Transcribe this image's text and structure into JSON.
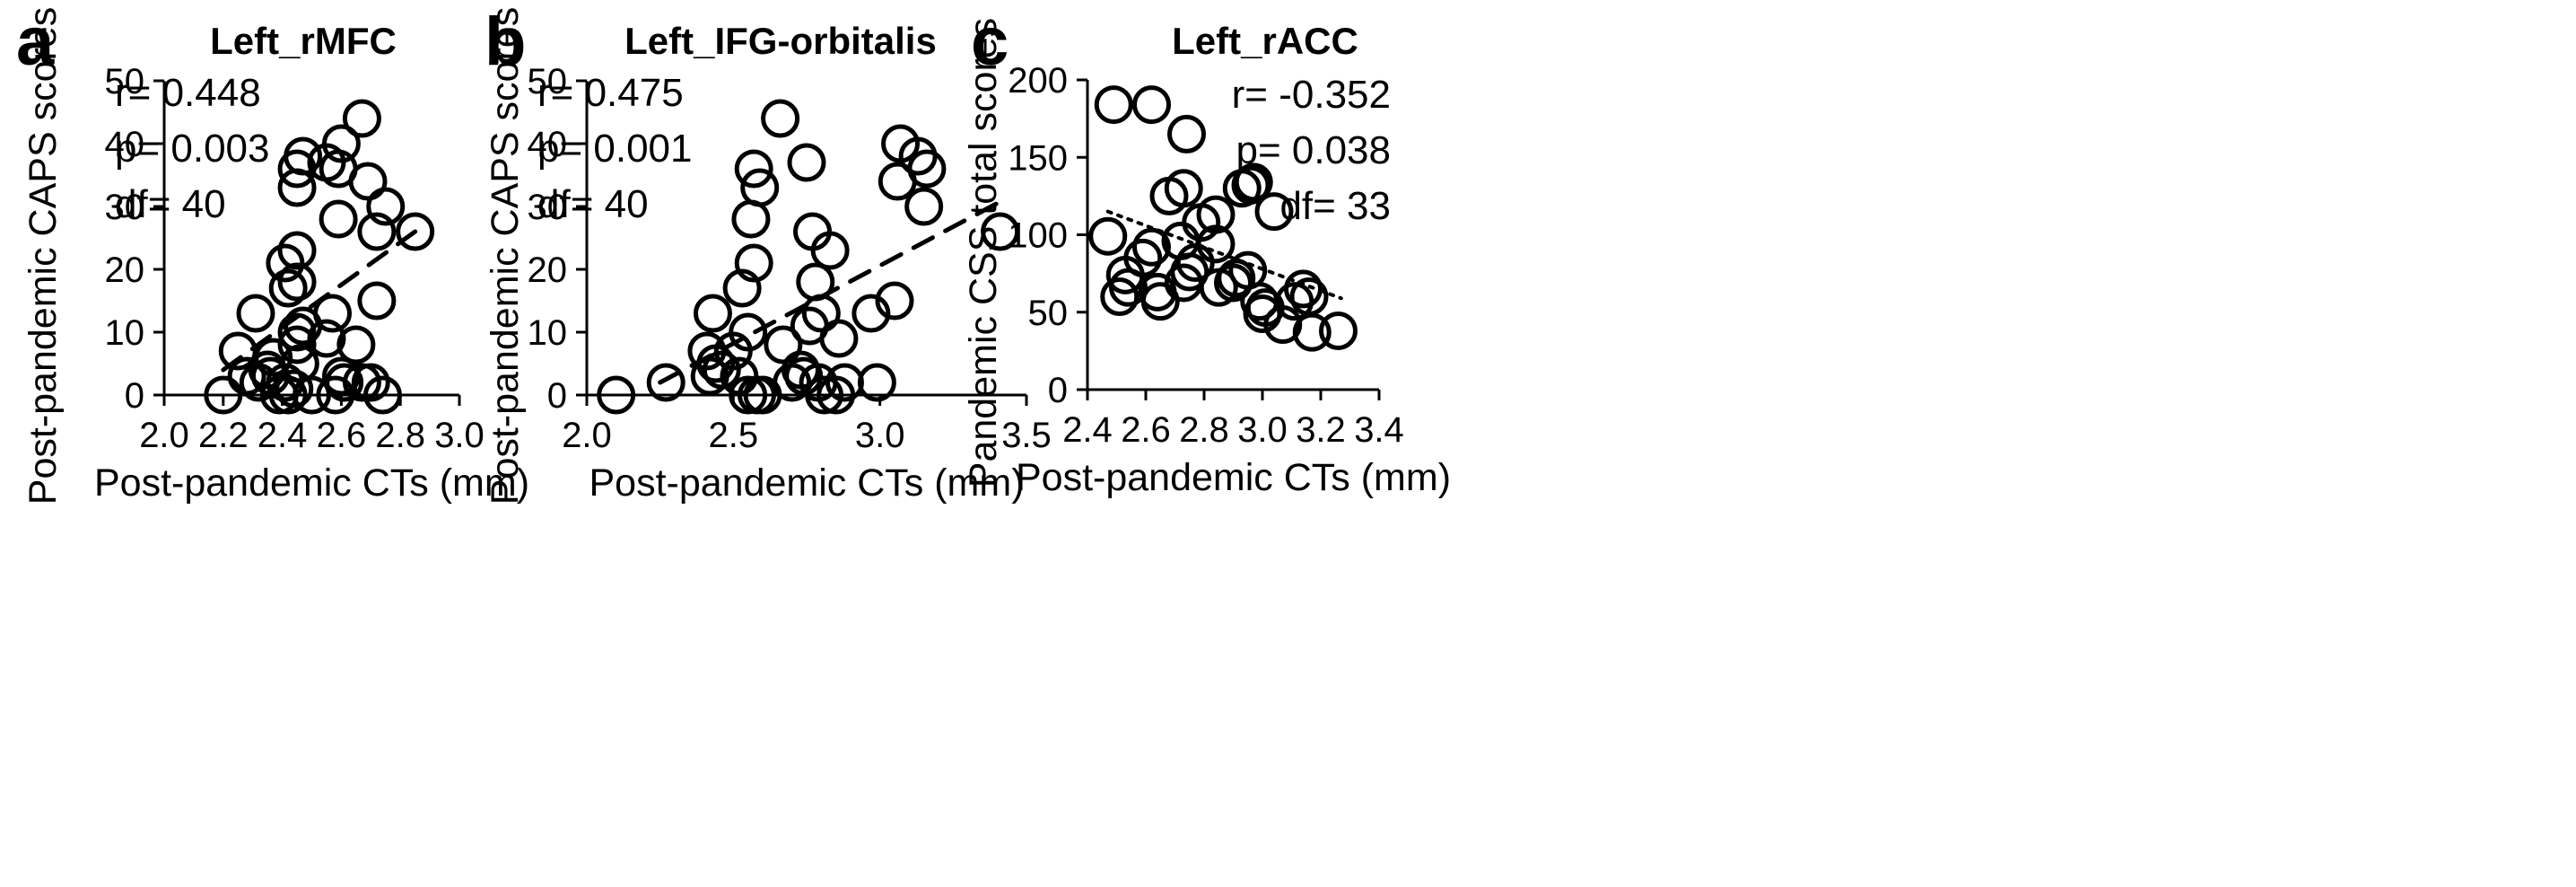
{
  "chart_data": [
    {
      "type": "scatter",
      "panel": "a",
      "title": "Left_rMFC",
      "xlabel": "Post-pandemic CTs (mm)",
      "ylabel": "Post-pandemic CAPS scores",
      "xlim": [
        2.0,
        3.0
      ],
      "ylim": [
        0,
        50
      ],
      "xticks": [
        "2.0",
        "2.2",
        "2.4",
        "2.6",
        "2.8",
        "3.0"
      ],
      "yticks": [
        "0",
        "10",
        "20",
        "30",
        "40",
        "50"
      ],
      "stats": [
        "r= 0.448",
        "p= 0.003",
        "df= 40"
      ],
      "trend": {
        "style": "dashed",
        "x": [
          2.2,
          2.85
        ],
        "y": [
          4,
          26
        ]
      },
      "points": [
        [
          2.2,
          0
        ],
        [
          2.25,
          7
        ],
        [
          2.28,
          3
        ],
        [
          2.31,
          13
        ],
        [
          2.32,
          2
        ],
        [
          2.35,
          4
        ],
        [
          2.36,
          3
        ],
        [
          2.37,
          6
        ],
        [
          2.39,
          0
        ],
        [
          2.41,
          21
        ],
        [
          2.41,
          2
        ],
        [
          2.42,
          0
        ],
        [
          2.42,
          17
        ],
        [
          2.44,
          1
        ],
        [
          2.45,
          23
        ],
        [
          2.45,
          18
        ],
        [
          2.45,
          33
        ],
        [
          2.45,
          36
        ],
        [
          2.45,
          10
        ],
        [
          2.45,
          8
        ],
        [
          2.46,
          5
        ],
        [
          2.47,
          11
        ],
        [
          2.47,
          38
        ],
        [
          2.5,
          0
        ],
        [
          2.55,
          9
        ],
        [
          2.55,
          37
        ],
        [
          2.57,
          13
        ],
        [
          2.58,
          0
        ],
        [
          2.59,
          36
        ],
        [
          2.59,
          28
        ],
        [
          2.6,
          40
        ],
        [
          2.6,
          3
        ],
        [
          2.61,
          2
        ],
        [
          2.65,
          8
        ],
        [
          2.67,
          44
        ],
        [
          2.67,
          2
        ],
        [
          2.69,
          34
        ],
        [
          2.7,
          2
        ],
        [
          2.72,
          15
        ],
        [
          2.72,
          26
        ],
        [
          2.74,
          0
        ],
        [
          2.75,
          30
        ],
        [
          2.85,
          26
        ]
      ]
    },
    {
      "type": "scatter",
      "panel": "b",
      "title": "Left_IFG-orbitalis",
      "xlabel": "Post-pandemic CTs (mm)",
      "ylabel": "Post-pandemic CAPS scores",
      "xlim": [
        2.0,
        3.5
      ],
      "ylim": [
        0,
        50
      ],
      "xticks": [
        "2.0",
        "2.5",
        "3.0",
        "3.5"
      ],
      "yticks": [
        "0",
        "10",
        "20",
        "30",
        "40",
        "50"
      ],
      "stats": [
        "r= 0.475",
        "p= 0.001",
        "df= 40"
      ],
      "trend": {
        "style": "dashed",
        "x": [
          2.25,
          3.4
        ],
        "y": [
          2,
          30.5
        ]
      },
      "points": [
        [
          2.1,
          0
        ],
        [
          2.27,
          2
        ],
        [
          2.41,
          7
        ],
        [
          2.42,
          3
        ],
        [
          2.43,
          13
        ],
        [
          2.44,
          5
        ],
        [
          2.46,
          4
        ],
        [
          2.5,
          7
        ],
        [
          2.52,
          3
        ],
        [
          2.53,
          17
        ],
        [
          2.55,
          0
        ],
        [
          2.55,
          10
        ],
        [
          2.56,
          28
        ],
        [
          2.57,
          36
        ],
        [
          2.57,
          21
        ],
        [
          2.58,
          0
        ],
        [
          2.59,
          33
        ],
        [
          2.6,
          0
        ],
        [
          2.66,
          44
        ],
        [
          2.67,
          8
        ],
        [
          2.7,
          2
        ],
        [
          2.73,
          4
        ],
        [
          2.74,
          3
        ],
        [
          2.75,
          37
        ],
        [
          2.76,
          11
        ],
        [
          2.77,
          26
        ],
        [
          2.78,
          18
        ],
        [
          2.79,
          2
        ],
        [
          2.8,
          13
        ],
        [
          2.81,
          0
        ],
        [
          2.83,
          23
        ],
        [
          2.85,
          0
        ],
        [
          2.86,
          9
        ],
        [
          2.88,
          2
        ],
        [
          2.97,
          13
        ],
        [
          2.99,
          2
        ],
        [
          3.05,
          15
        ],
        [
          3.06,
          34
        ],
        [
          3.07,
          40
        ],
        [
          3.13,
          38
        ],
        [
          3.15,
          30
        ],
        [
          3.16,
          36
        ],
        [
          3.41,
          26
        ]
      ]
    },
    {
      "type": "scatter",
      "panel": "c",
      "title": "Left_rACC",
      "xlabel": "Post-pandemic CTs (mm)",
      "ylabel": "Pandemic CSS total scores",
      "xlim": [
        2.4,
        3.4
      ],
      "ylim": [
        0,
        200
      ],
      "xticks": [
        "2.4",
        "2.6",
        "2.8",
        "3.0",
        "3.2",
        "3.4"
      ],
      "yticks": [
        "0",
        "50",
        "100",
        "150",
        "200"
      ],
      "stats": [
        "r= -0.352",
        "p= 0.038",
        "df= 33"
      ],
      "trend": {
        "style": "dotted",
        "x": [
          2.47,
          3.27
        ],
        "y": [
          115,
          59
        ]
      },
      "points": [
        [
          2.47,
          99
        ],
        [
          2.49,
          184
        ],
        [
          2.51,
          60
        ],
        [
          2.53,
          74
        ],
        [
          2.54,
          66
        ],
        [
          2.59,
          85
        ],
        [
          2.62,
          184
        ],
        [
          2.62,
          92
        ],
        [
          2.64,
          63
        ],
        [
          2.65,
          57
        ],
        [
          2.68,
          125
        ],
        [
          2.72,
          96
        ],
        [
          2.73,
          130
        ],
        [
          2.73,
          69
        ],
        [
          2.74,
          165
        ],
        [
          2.75,
          76
        ],
        [
          2.77,
          82
        ],
        [
          2.79,
          108
        ],
        [
          2.84,
          113
        ],
        [
          2.84,
          94
        ],
        [
          2.85,
          66
        ],
        [
          2.9,
          69
        ],
        [
          2.91,
          72
        ],
        [
          2.93,
          130
        ],
        [
          2.95,
          77
        ],
        [
          2.96,
          132
        ],
        [
          2.97,
          134
        ],
        [
          2.99,
          57
        ],
        [
          3.0,
          49
        ],
        [
          3.01,
          53
        ],
        [
          3.04,
          115
        ],
        [
          3.07,
          42
        ],
        [
          3.11,
          57
        ],
        [
          3.14,
          65
        ],
        [
          3.16,
          60
        ],
        [
          3.17,
          37
        ],
        [
          3.26,
          38
        ]
      ]
    }
  ]
}
